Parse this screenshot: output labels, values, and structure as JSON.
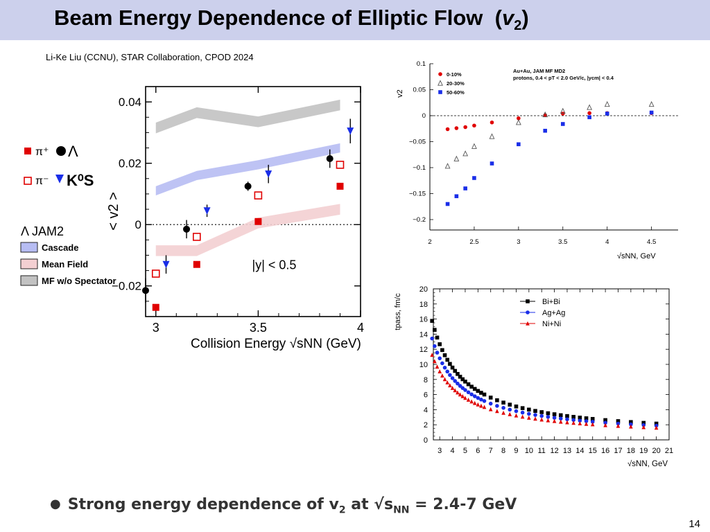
{
  "slide": {
    "title": "Beam Energy Dependence of Elliptic Flow",
    "title_symbol": "v",
    "title_subscript": "2",
    "subtitle": "Li-Ke Liu (CCNU), STAR Collaboration, CPOD 2024",
    "bullet_prefix": "Strong energy dependence of v",
    "bullet_sub": "2",
    "bullet_mid": " at √s",
    "bullet_sub2": "NN",
    "bullet_suffix": " = 2.4-7 GeV",
    "page_number": "14"
  },
  "chart_data": [
    {
      "type": "scatter",
      "id": "left",
      "xlabel": "Collision Energy √sNN (GeV)",
      "ylabel": "< v2 >",
      "xlim": [
        2.95,
        4.0
      ],
      "ylim": [
        -0.03,
        0.045
      ],
      "xticks": [
        "3",
        "3.5",
        "4"
      ],
      "yticks": [
        "0.04",
        "0.02",
        "0",
        "−0.02"
      ],
      "annotation": "|y| < 0.5",
      "legend": [
        "π⁺",
        "Λ",
        "π⁻",
        "K⁰S"
      ],
      "model_title": "Λ JAM2",
      "model_legend": [
        "Cascade",
        "Mean Field",
        "MF w/o Spectator"
      ],
      "colors": {
        "red": "#e00000",
        "blue": "#1a2ee8",
        "cascade": "#b7bdf3",
        "mf": "#f3cfd2",
        "mfws": "#c2c2c2"
      },
      "series": [
        {
          "name": "π⁺",
          "marker": "filled-square",
          "color": "#e00000",
          "x": [
            3.0,
            3.2,
            3.5,
            3.9
          ],
          "y": [
            -0.027,
            -0.013,
            0.001,
            0.0125
          ]
        },
        {
          "name": "π⁻",
          "marker": "open-square",
          "color": "#e00000",
          "x": [
            3.0,
            3.2,
            3.5,
            3.9
          ],
          "y": [
            -0.016,
            -0.004,
            0.0095,
            0.0195
          ]
        },
        {
          "name": "Λ",
          "marker": "filled-circle",
          "color": "#000000",
          "x": [
            2.95,
            3.15,
            3.45,
            3.85
          ],
          "y": [
            -0.0215,
            -0.0015,
            0.0125,
            0.0215
          ],
          "err": [
            0.004,
            0.003,
            0.0015,
            0.003
          ]
        },
        {
          "name": "K⁰S",
          "marker": "down-triangle",
          "color": "#1a2ee8",
          "x": [
            3.05,
            3.25,
            3.55,
            3.95
          ],
          "y": [
            -0.013,
            0.0045,
            0.0165,
            0.0305
          ],
          "err": [
            0.003,
            0.002,
            0.003,
            0.004
          ]
        }
      ],
      "bands": [
        {
          "name": "Cascade",
          "x": [
            3.0,
            3.2,
            3.5,
            3.9
          ],
          "y": [
            0.011,
            0.016,
            0.0195,
            0.025
          ],
          "w": 0.003
        },
        {
          "name": "Mean Field",
          "x": [
            3.0,
            3.2,
            3.5,
            3.9
          ],
          "y": [
            -0.0085,
            -0.0085,
            0.0005,
            0.005
          ],
          "w": 0.0035
        },
        {
          "name": "MF w/o Spectator",
          "x": [
            3.0,
            3.2,
            3.5,
            3.9
          ],
          "y": [
            0.0315,
            0.0365,
            0.0335,
            0.039
          ],
          "w": 0.0035
        }
      ]
    },
    {
      "type": "scatter",
      "id": "top-right",
      "xlabel": "√sNN, GeV",
      "ylabel": "v2",
      "xlim": [
        2,
        4.8
      ],
      "ylim": [
        -0.22,
        0.1
      ],
      "xticks": [
        "2",
        "2.5",
        "3",
        "3.5",
        "4",
        "4.5"
      ],
      "yticks": [
        "0.1",
        "0.05",
        "0",
        "−0.05",
        "−0.1",
        "−0.15",
        "−0.2"
      ],
      "annotation_line1": "Au+Au, JAM MF MD2",
      "annotation_line2": "protons, 0.4 < pT < 2.0 GeV/c, |ycm| < 0.4",
      "legend": [
        "0-10%",
        "20-30%",
        "50-60%"
      ],
      "series": [
        {
          "name": "0-10%",
          "marker": "filled-circle",
          "color": "#e00000",
          "x": [
            2.2,
            2.3,
            2.4,
            2.5,
            2.7,
            3.0,
            3.3,
            3.5,
            3.8,
            4.0,
            4.5
          ],
          "y": [
            -0.026,
            -0.024,
            -0.022,
            -0.019,
            -0.013,
            -0.005,
            0.001,
            0.004,
            0.005,
            0.005,
            0.005
          ]
        },
        {
          "name": "20-30%",
          "marker": "open-triangle",
          "color": "#555555",
          "x": [
            2.2,
            2.3,
            2.4,
            2.5,
            2.7,
            3.0,
            3.3,
            3.5,
            3.8,
            4.0,
            4.5
          ],
          "y": [
            -0.097,
            -0.083,
            -0.073,
            -0.059,
            -0.04,
            -0.013,
            0.002,
            0.009,
            0.016,
            0.022,
            0.022
          ]
        },
        {
          "name": "50-60%",
          "marker": "filled-square",
          "color": "#1a2ee8",
          "x": [
            2.2,
            2.3,
            2.4,
            2.5,
            2.7,
            3.0,
            3.3,
            3.5,
            3.8,
            4.0,
            4.5
          ],
          "y": [
            -0.17,
            -0.155,
            -0.14,
            -0.12,
            -0.092,
            -0.055,
            -0.029,
            -0.016,
            -0.003,
            0.004,
            0.006
          ]
        }
      ]
    },
    {
      "type": "scatter",
      "id": "bottom-right",
      "xlabel": "√sNN, GeV",
      "ylabel": "tpass, fm/c",
      "xlim": [
        2.5,
        21
      ],
      "ylim": [
        0,
        20
      ],
      "xticks": [
        "3",
        "4",
        "5",
        "6",
        "7",
        "8",
        "9",
        "10",
        "11",
        "12",
        "13",
        "14",
        "15",
        "16",
        "17",
        "18",
        "19",
        "20",
        "21"
      ],
      "yticks": [
        "0",
        "2",
        "4",
        "6",
        "8",
        "10",
        "12",
        "14",
        "16",
        "18",
        "20"
      ],
      "legend": [
        "Bi+Bi",
        "Ag+Ag",
        "Ni+Ni"
      ],
      "series": [
        {
          "name": "Bi+Bi",
          "marker": "filled-square",
          "color": "#000000",
          "k": 37.1
        },
        {
          "name": "Ag+Ag",
          "marker": "filled-circle",
          "color": "#1a2ee8",
          "k": 31.5
        },
        {
          "name": "Ni+Ni",
          "marker": "up-triangle",
          "color": "#e00000",
          "k": 26.3
        }
      ],
      "x": [
        2.4,
        2.6,
        2.8,
        3.0,
        3.2,
        3.4,
        3.6,
        3.8,
        4.0,
        4.2,
        4.4,
        4.6,
        4.8,
        5.0,
        5.25,
        5.5,
        5.75,
        6.0,
        6.25,
        6.5,
        7.0,
        7.5,
        8.0,
        8.5,
        9.0,
        9.5,
        10.0,
        10.5,
        11.0,
        11.5,
        12.0,
        12.5,
        13.0,
        13.5,
        14.0,
        14.5,
        15.0,
        16.0,
        17.0,
        18.0,
        19.0,
        20.0
      ]
    }
  ]
}
